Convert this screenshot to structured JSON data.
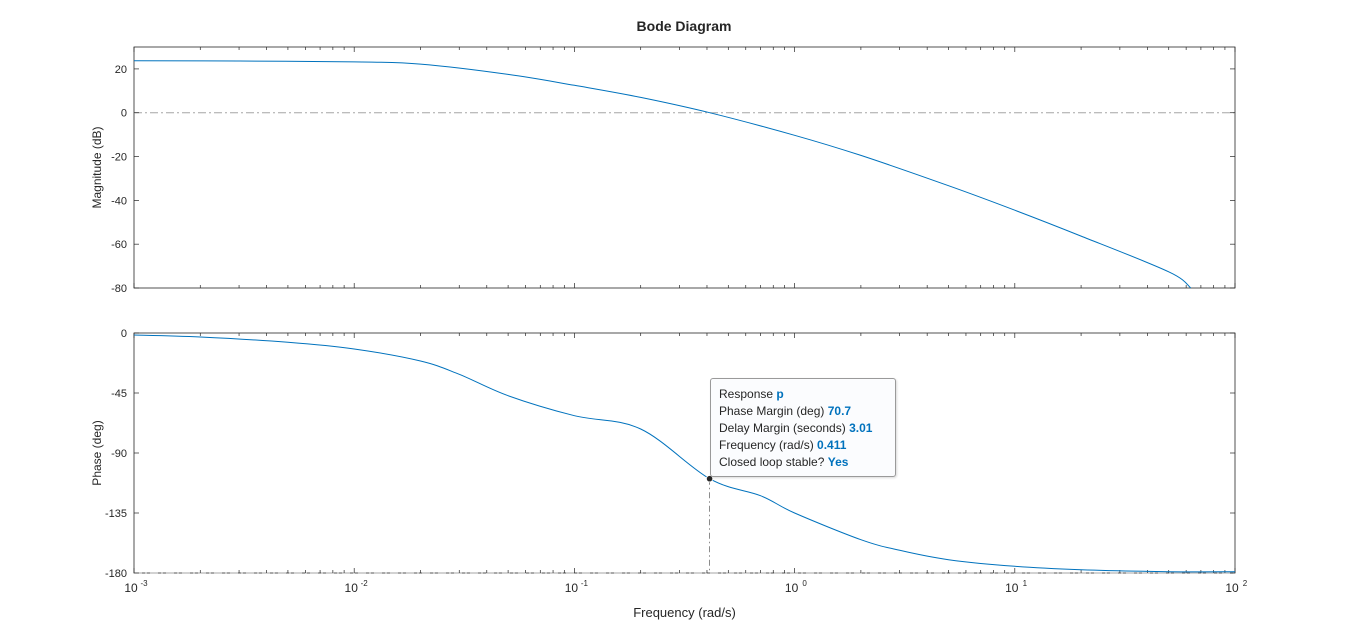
{
  "figure_title": "Bode Diagram",
  "colors": {
    "line": "#0072BD",
    "axes": "#262626",
    "ref_line": "#a6a6a6"
  },
  "chart_data": [
    {
      "type": "line",
      "name": "magnitude",
      "ylabel": "Magnitude (dB)",
      "xscale": "log",
      "xlim": [
        0.001,
        100
      ],
      "ylim": [
        -80,
        30
      ],
      "yticks": [
        20,
        0,
        -20,
        -40,
        -60,
        -80
      ],
      "reference_line_y": 0,
      "series": [
        {
          "x": [
            0.001,
            0.003,
            0.01,
            0.02,
            0.05,
            0.1,
            0.2,
            0.411,
            1,
            2,
            5,
            10,
            20,
            50,
            63
          ],
          "y": [
            23.7,
            23.6,
            23.2,
            22.2,
            17.5,
            12.5,
            7.0,
            0,
            -10.3,
            -19.5,
            -33.3,
            -44.5,
            -56.3,
            -72.6,
            -80
          ]
        }
      ]
    },
    {
      "type": "line",
      "name": "phase",
      "ylabel": "Phase (deg)",
      "xlabel": "Frequency (rad/s)",
      "xscale": "log",
      "xlim": [
        0.001,
        100
      ],
      "ylim": [
        -180,
        0
      ],
      "yticks": [
        0,
        -45,
        -90,
        -135,
        -180
      ],
      "xticks": [
        0.001,
        0.01,
        0.1,
        1,
        10,
        100
      ],
      "xtick_labels": [
        [
          "10",
          "-3"
        ],
        [
          "10",
          "-2"
        ],
        [
          "10",
          "-1"
        ],
        [
          "10",
          "0"
        ],
        [
          "10",
          "1"
        ],
        [
          "10",
          "2"
        ]
      ],
      "reference_line_y": -180,
      "series": [
        {
          "x": [
            0.001,
            0.002,
            0.005,
            0.01,
            0.02,
            0.03,
            0.05,
            0.1,
            0.2,
            0.411,
            0.7,
            1,
            2,
            3,
            5,
            10,
            20,
            50,
            100
          ],
          "y": [
            -1.5,
            -3,
            -7,
            -12,
            -21,
            -31,
            -47,
            -62,
            -72,
            -109.3,
            -122,
            -135,
            -155,
            -163,
            -170,
            -175,
            -177.5,
            -179,
            -179
          ]
        }
      ],
      "marker": {
        "x": 0.411,
        "y": -109.3
      }
    }
  ],
  "datatip": {
    "response_label": "Response",
    "response_value": "p",
    "phase_margin_label": "Phase Margin (deg)",
    "phase_margin_value": "70.7",
    "delay_margin_label": "Delay Margin (seconds)",
    "delay_margin_value": "3.01",
    "frequency_label": "Frequency (rad/s)",
    "frequency_value": "0.411",
    "stable_label": "Closed loop stable?",
    "stable_value": "Yes"
  }
}
